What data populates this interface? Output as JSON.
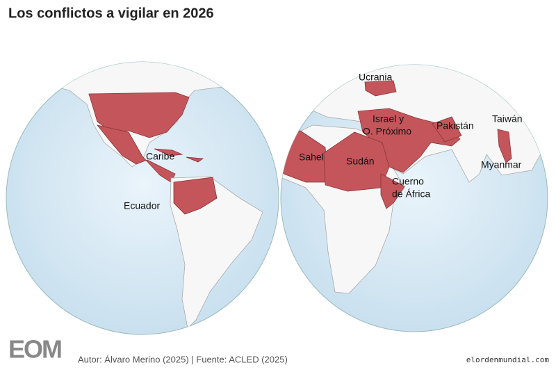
{
  "title": "Los conflictos a vigilar en 2026",
  "labels": [
    [
      "Ucrania"
    ],
    [
      "Israel y",
      "O. Próximo"
    ],
    [
      "Pakistán"
    ],
    [
      "Taiwán"
    ],
    [
      "Myanmar"
    ],
    [
      "Sahel"
    ],
    [
      "Sudán"
    ],
    [
      "Cuerno",
      "de África"
    ],
    [
      "Caribe"
    ],
    [
      "Ecuador"
    ]
  ],
  "footer": {
    "logo": "EOM",
    "credit": "Autor: Álvaro Merino (2025) | Fuente: ACLED (2025)"
  },
  "watermark": "elordenmundial.com"
}
